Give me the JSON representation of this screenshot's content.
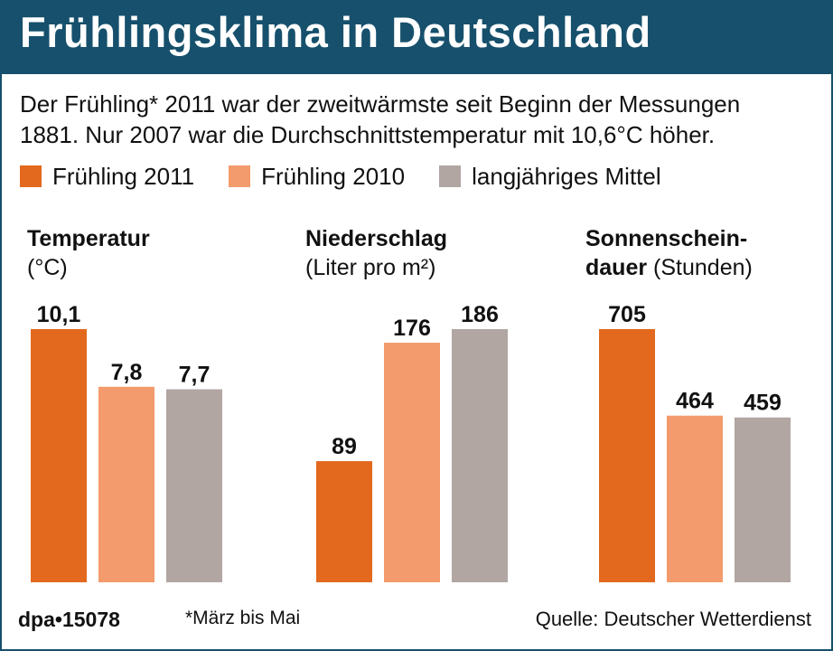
{
  "header": {
    "title": "Frühlingsklima in Deutschland",
    "intro_line1": "Der Frühling* 2011 war der zweitwärmste seit Beginn der Messungen",
    "intro_line2": "1881. Nur 2007 war die Durchschnittstemperatur mit 10,6°C höher."
  },
  "colors": {
    "title_bar": "#16506c",
    "series_2011": "#e2691e",
    "series_2010": "#f39b6c",
    "series_mittel": "#b1a6a2"
  },
  "legend": [
    {
      "label": "Frühling 2011",
      "color": "#e2691e"
    },
    {
      "label": "Frühling 2010",
      "color": "#f39b6c"
    },
    {
      "label": "langjähriges Mittel",
      "color": "#b1a6a2"
    }
  ],
  "chart_data": [
    {
      "type": "bar",
      "title_bold": "Temperatur",
      "title_unit": "(°C)",
      "categories": [
        "Frühling 2011",
        "Frühling 2010",
        "langjähriges Mittel"
      ],
      "values": [
        10.1,
        7.8,
        7.7
      ],
      "value_labels": [
        "10,1",
        "7,8",
        "7,7"
      ],
      "ylim": [
        0,
        10.1
      ]
    },
    {
      "type": "bar",
      "title_bold": "Niederschlag",
      "title_unit": "(Liter pro m²)",
      "categories": [
        "Frühling 2011",
        "Frühling 2010",
        "langjähriges Mittel"
      ],
      "values": [
        89,
        176,
        186
      ],
      "value_labels": [
        "89",
        "176",
        "186"
      ],
      "ylim": [
        0,
        186
      ]
    },
    {
      "type": "bar",
      "title_bold": "Sonnenschein-",
      "title_bold2": "dauer",
      "title_unit": "(Stunden)",
      "categories": [
        "Frühling 2011",
        "Frühling 2010",
        "langjähriges Mittel"
      ],
      "values": [
        705,
        464,
        459
      ],
      "value_labels": [
        "705",
        "464",
        "459"
      ],
      "ylim": [
        0,
        705
      ]
    }
  ],
  "footer": {
    "credit": "dpa•15078",
    "note": "*März bis Mai",
    "source": "Quelle: Deutscher Wetterdienst"
  }
}
